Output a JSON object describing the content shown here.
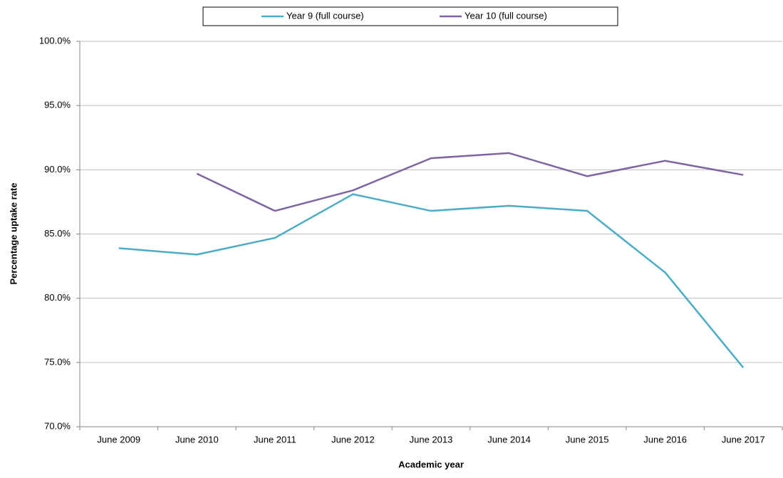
{
  "chart_data": {
    "type": "line",
    "x_label": "Academic year",
    "y_label": "Percentage  uptake rate",
    "categories": [
      "June 2009",
      "June 2010",
      "June 2011",
      "June 2012",
      "June 2013",
      "June 2014",
      "June 2015",
      "June 2016",
      "June 2017"
    ],
    "series": [
      {
        "name": "Year 9 (full course)",
        "color": "#4bacc6",
        "values": [
          83.9,
          83.4,
          84.7,
          88.1,
          86.8,
          87.2,
          86.8,
          82.0,
          74.6
        ]
      },
      {
        "name": "Year 10 (full course)",
        "color": "#8064a2",
        "values": [
          null,
          89.7,
          86.8,
          88.4,
          90.9,
          91.3,
          89.5,
          90.7,
          89.6
        ]
      }
    ],
    "ylim": [
      70,
      100
    ],
    "yticks": [
      {
        "value": 70,
        "label": "70.0%"
      },
      {
        "value": 75,
        "label": "75.0%"
      },
      {
        "value": 80,
        "label": "80.0%"
      },
      {
        "value": 85,
        "label": "85.0%"
      },
      {
        "value": 90,
        "label": "90.0%"
      },
      {
        "value": 95,
        "label": "95.0%"
      },
      {
        "value": 100,
        "label": "100.0%"
      }
    ],
    "grid": true,
    "legend": "top"
  }
}
